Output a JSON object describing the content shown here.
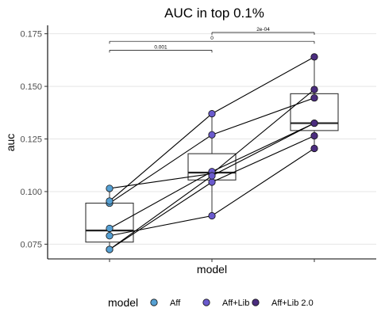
{
  "chart_data": {
    "type": "box-paired-dot",
    "title": "AUC in top 0.1%",
    "xlabel": "model",
    "ylabel": "auc",
    "ylim": [
      0.068,
      0.179
    ],
    "y_ticks": [
      0.075,
      0.1,
      0.125,
      0.15,
      0.175
    ],
    "y_tick_labels": [
      "0.075",
      "0.100",
      "0.125",
      "0.150",
      "0.175"
    ],
    "grid": "horizontal major",
    "categories": [
      "Aff",
      "Aff+Lib",
      "Aff+Lib 2.0"
    ],
    "colors": [
      "#56a0d3",
      "#6a5acd",
      "#4b2d7f"
    ],
    "boxes": [
      {
        "q1": 0.076,
        "median": 0.0815,
        "q3": 0.0945,
        "lower_whisker": 0.0725,
        "upper_whisker": 0.1015
      },
      {
        "q1": 0.1055,
        "median": 0.109,
        "q3": 0.118,
        "lower_whisker": 0.0885,
        "upper_whisker": 0.137
      },
      {
        "q1": 0.129,
        "median": 0.1325,
        "q3": 0.1465,
        "lower_whisker": 0.1205,
        "upper_whisker": 0.1645
      }
    ],
    "paired_points": [
      [
        0.1015,
        0.1085,
        0.1485
      ],
      [
        0.0945,
        0.127,
        0.1445
      ],
      [
        0.0955,
        0.137,
        0.164
      ],
      [
        0.0825,
        0.1095,
        0.1325
      ],
      [
        0.079,
        0.0885,
        0.1205
      ],
      [
        0.0725,
        0.1045,
        0.1265
      ],
      [
        0.0725,
        0.1075,
        0.1325
      ]
    ],
    "significance": [
      {
        "from": 0,
        "to": 1,
        "label": "0.001",
        "y": 0.1672
      },
      {
        "from": 0,
        "to": 2,
        "label": "0",
        "y": 0.1714
      },
      {
        "from": 1,
        "to": 2,
        "label": "2e-04",
        "y": 0.1756
      }
    ],
    "legend": {
      "title": "model",
      "position": "bottom",
      "entries": [
        "Aff",
        "Aff+Lib",
        "Aff+Lib 2.0"
      ]
    }
  }
}
